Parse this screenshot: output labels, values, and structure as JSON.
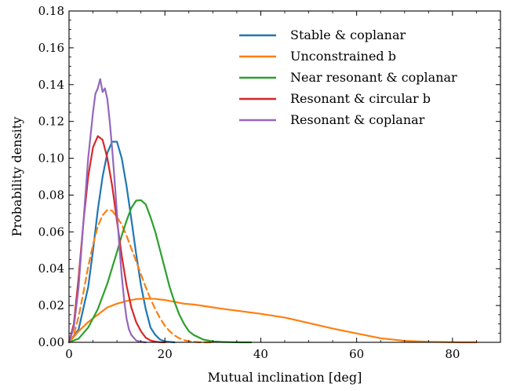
{
  "chart_data": {
    "type": "line",
    "xlabel": "Mutual inclination [deg]",
    "ylabel": "Probability density",
    "xlim": [
      0,
      90
    ],
    "ylim": [
      0,
      0.18
    ],
    "xticks": [
      0,
      20,
      40,
      60,
      80
    ],
    "xtick_labels": [
      "0",
      "20",
      "40",
      "60",
      "80"
    ],
    "yticks": [
      0,
      0.02,
      0.04,
      0.06,
      0.08,
      0.1,
      0.12,
      0.14,
      0.16,
      0.18
    ],
    "ytick_labels": [
      "0.00",
      "0.02",
      "0.04",
      "0.06",
      "0.08",
      "0.10",
      "0.12",
      "0.14",
      "0.16",
      "0.18"
    ],
    "grid": false,
    "legend_position": "top-right",
    "series": [
      {
        "name": "Stable & coplanar",
        "color": "#1f77b4",
        "style": "solid",
        "x": [
          0,
          2,
          4,
          5,
          6,
          7,
          8,
          9,
          10,
          11,
          12,
          13,
          14,
          15,
          16,
          17,
          18,
          19,
          20,
          22
        ],
        "y": [
          0.0,
          0.007,
          0.03,
          0.05,
          0.072,
          0.09,
          0.103,
          0.109,
          0.109,
          0.1,
          0.085,
          0.067,
          0.048,
          0.031,
          0.018,
          0.008,
          0.004,
          0.0015,
          0.0005,
          0.0
        ]
      },
      {
        "name": "Unconstrained b",
        "color": "#ff7f0e",
        "style": "solid",
        "x": [
          0,
          2,
          4,
          6,
          8,
          10,
          12,
          14,
          16,
          18,
          20,
          22,
          24,
          26,
          28,
          30,
          32,
          35,
          40,
          45,
          50,
          55,
          60,
          65,
          70,
          75,
          80,
          82,
          85
        ],
        "y": [
          0.0,
          0.006,
          0.011,
          0.015,
          0.019,
          0.021,
          0.0225,
          0.0235,
          0.0238,
          0.0236,
          0.023,
          0.022,
          0.021,
          0.0205,
          0.0198,
          0.019,
          0.0182,
          0.0172,
          0.0155,
          0.0135,
          0.0105,
          0.0075,
          0.0048,
          0.0022,
          0.0008,
          0.0003,
          0.0001,
          0.0,
          0.0
        ]
      },
      {
        "name": "",
        "color": "#ff7f0e",
        "style": "dashed",
        "x": [
          0,
          1,
          2,
          3,
          4,
          5,
          6,
          7,
          8,
          9,
          10,
          11,
          12,
          13,
          14,
          15,
          16,
          17,
          18,
          19,
          20,
          21,
          22,
          23,
          24,
          25,
          26,
          27,
          28,
          29,
          30
        ],
        "y": [
          0.0,
          0.004,
          0.014,
          0.027,
          0.041,
          0.053,
          0.063,
          0.069,
          0.072,
          0.0715,
          0.068,
          0.064,
          0.058,
          0.051,
          0.044,
          0.037,
          0.03,
          0.0235,
          0.018,
          0.013,
          0.009,
          0.006,
          0.0038,
          0.0022,
          0.0012,
          0.0006,
          0.0003,
          0.0001,
          0.0,
          0.0,
          0.0
        ]
      },
      {
        "name": "Near resonant & coplanar",
        "color": "#2ca02c",
        "style": "solid",
        "x": [
          0,
          2,
          4,
          6,
          8,
          10,
          11,
          12,
          13,
          14,
          15,
          16,
          17,
          18,
          19,
          20,
          21,
          22,
          23,
          24,
          25,
          26,
          28,
          30,
          32,
          34,
          36,
          38
        ],
        "y": [
          0.0,
          0.002,
          0.008,
          0.018,
          0.032,
          0.049,
          0.058,
          0.066,
          0.073,
          0.077,
          0.0772,
          0.075,
          0.068,
          0.06,
          0.05,
          0.04,
          0.03,
          0.022,
          0.015,
          0.01,
          0.006,
          0.004,
          0.0015,
          0.0005,
          0.0002,
          0.0001,
          0.0,
          0.0
        ]
      },
      {
        "name": "Resonant & circular b",
        "color": "#d62728",
        "style": "solid",
        "x": [
          0,
          1,
          2,
          3,
          4,
          5,
          6,
          7,
          8,
          9,
          10,
          11,
          12,
          13,
          14,
          15,
          16,
          17,
          18,
          19,
          20
        ],
        "y": [
          0.0,
          0.01,
          0.035,
          0.065,
          0.09,
          0.106,
          0.112,
          0.11,
          0.1,
          0.085,
          0.066,
          0.047,
          0.031,
          0.019,
          0.011,
          0.006,
          0.0025,
          0.001,
          0.0004,
          0.0001,
          0.0
        ]
      },
      {
        "name": "Resonant & coplanar",
        "color": "#9467bd",
        "style": "solid",
        "x": [
          0,
          1,
          2,
          3,
          4,
          5,
          5.5,
          6,
          6.5,
          7,
          7.5,
          8,
          8.5,
          9,
          9.5,
          10,
          10.5,
          11,
          11.5,
          12,
          12.5,
          13,
          14,
          15,
          16
        ],
        "y": [
          0.0,
          0.008,
          0.03,
          0.065,
          0.1,
          0.125,
          0.135,
          0.138,
          0.143,
          0.136,
          0.138,
          0.132,
          0.12,
          0.105,
          0.088,
          0.07,
          0.052,
          0.036,
          0.023,
          0.013,
          0.007,
          0.004,
          0.001,
          0.0003,
          0.0
        ]
      }
    ]
  }
}
